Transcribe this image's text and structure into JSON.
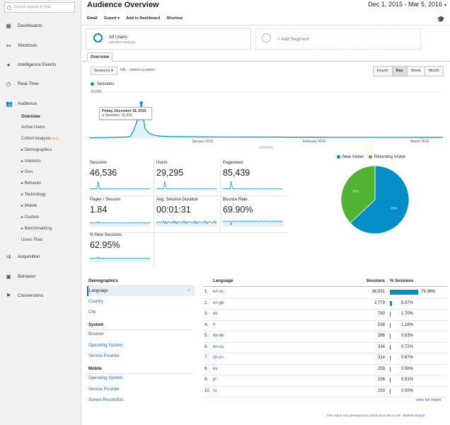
{
  "sidebar": {
    "search_placeholder": "Search reports & help",
    "nav": [
      {
        "label": "Dashboards",
        "icon": "dashboard-icon"
      },
      {
        "label": "Shortcuts",
        "icon": "shortcut-icon"
      },
      {
        "label": "Intelligence Events",
        "icon": "lightbulb-icon"
      },
      {
        "label": "Real-Time",
        "icon": "clock-icon"
      },
      {
        "label": "Audience",
        "icon": "people-icon"
      },
      {
        "label": "Acquisition",
        "icon": "acquisition-icon"
      },
      {
        "label": "Behavior",
        "icon": "behavior-icon"
      },
      {
        "label": "Conversions",
        "icon": "flag-icon"
      }
    ],
    "audience_sub": [
      "Overview",
      "Active Users",
      "Cohort Analysis",
      "Demographics",
      "Interests",
      "Geo",
      "Behavior",
      "Technology",
      "Mobile",
      "Custom",
      "Benchmarking",
      "Users Flow"
    ],
    "beta_label": "BETA"
  },
  "header": {
    "title": "Audience Overview",
    "date_range": "Dec 1, 2015 - Mar 5, 2016",
    "toolbar": {
      "email": "Email",
      "export": "Export ▾",
      "add_dashboard": "Add to Dashboard",
      "shortcut": "Shortcut"
    }
  },
  "segments": {
    "all_users": "All Users",
    "all_users_sub": "100.00% Sessions",
    "add_segment": "+ Add Segment"
  },
  "tabs": {
    "overview": "Overview"
  },
  "chart_controls": {
    "metric": "Sessions",
    "vs": "VS.",
    "select_metric": "Select a metric",
    "periods": [
      "Hourly",
      "Day",
      "Week",
      "Month"
    ],
    "selected_period": "Day"
  },
  "chart_data": {
    "type": "line",
    "series": [
      {
        "name": "Sessions",
        "color": "#058dc7"
      }
    ],
    "y_tick_label": "20,000",
    "ylim": [
      0,
      20000
    ],
    "x_ticks": [
      "January 2016",
      "February 2016",
      "March 2016"
    ],
    "values": [
      200,
      210,
      190,
      230,
      260,
      300,
      340,
      380,
      420,
      460,
      500,
      700,
      3500,
      8000,
      15316,
      4200,
      2200,
      1500,
      1100,
      900,
      800,
      750,
      700,
      680,
      650,
      640,
      620,
      610,
      600,
      590,
      580,
      570,
      560,
      550,
      540,
      530,
      530,
      520,
      520,
      510,
      510,
      500,
      500,
      495,
      490,
      485,
      480,
      475,
      470,
      465,
      460,
      455,
      450,
      445,
      440,
      438,
      435,
      432,
      430,
      428,
      425,
      422,
      420,
      418,
      415,
      412,
      410,
      408,
      405,
      402,
      400,
      398,
      395,
      392,
      390,
      388,
      385,
      382,
      380,
      378,
      375,
      372,
      370,
      368,
      365,
      362,
      360,
      358,
      355,
      352,
      350,
      348,
      345,
      342,
      340,
      338
    ],
    "tooltip": {
      "date": "Friday, December 18, 2015",
      "label": "Sessions: 15,316"
    }
  },
  "metrics": [
    {
      "label": "Sessions",
      "value": "46,536"
    },
    {
      "label": "Users",
      "value": "29,295"
    },
    {
      "label": "Pageviews",
      "value": "85,439"
    },
    {
      "label": "Pages / Session",
      "value": "1.84"
    },
    {
      "label": "Avg. Session Duration",
      "value": "00:01:31"
    },
    {
      "label": "Bounce Rate",
      "value": "69.90%"
    },
    {
      "label": "% New Sessions",
      "value": "62.95%"
    }
  ],
  "pie": {
    "legend": [
      {
        "label": "New Visitor",
        "color": "#058dc7"
      },
      {
        "label": "Returning Visitor",
        "color": "#50b432"
      }
    ],
    "values": [
      63,
      37
    ],
    "labels": [
      "63%",
      "37%"
    ]
  },
  "demographics": {
    "title": "Demographics",
    "selected": "Language",
    "links1": [
      "Country",
      "City"
    ],
    "system_title": "System",
    "system_links": [
      "Browser",
      "Operating System",
      "Service Provider"
    ],
    "mobile_title": "Mobile",
    "mobile_links": [
      "Operating System",
      "Service Provider",
      "Screen Resolution"
    ]
  },
  "table": {
    "headers": {
      "language": "Language",
      "sessions": "Sessions",
      "pct": "% Sessions"
    },
    "rows": [
      {
        "n": "1.",
        "lang": "en-us",
        "sessions": "36,931",
        "pct": "79.36%",
        "frac": 0.7936
      },
      {
        "n": "2.",
        "lang": "en-gb",
        "sessions": "2,779",
        "pct": "5.97%",
        "frac": 0.0597
      },
      {
        "n": "3.",
        "lang": "de",
        "sessions": "790",
        "pct": "1.70%",
        "frac": 0.017
      },
      {
        "n": "4.",
        "lang": "fr",
        "sessions": "538",
        "pct": "1.16%",
        "frac": 0.0116
      },
      {
        "n": "5.",
        "lang": "de-de",
        "sessions": "386",
        "pct": "0.83%",
        "frac": 0.0083
      },
      {
        "n": "6.",
        "lang": "en-ca",
        "sessions": "334",
        "pct": "0.72%",
        "frac": 0.0072
      },
      {
        "n": "7.",
        "lang": "zh-cn",
        "sessions": "314",
        "pct": "0.67%",
        "frac": 0.0067
      },
      {
        "n": "8.",
        "lang": "es",
        "sessions": "259",
        "pct": "0.56%",
        "frac": 0.0056
      },
      {
        "n": "9.",
        "lang": "pl",
        "sessions": "236",
        "pct": "0.51%",
        "frac": 0.0051
      },
      {
        "n": "10.",
        "lang": "ru",
        "sessions": "233",
        "pct": "0.50%",
        "frac": 0.005
      }
    ],
    "view_full": "view full report"
  },
  "footer": {
    "generated": "This report was generated on 3/6/16 at 10:46:22 AM -",
    "refresh": "Refresh Report"
  }
}
